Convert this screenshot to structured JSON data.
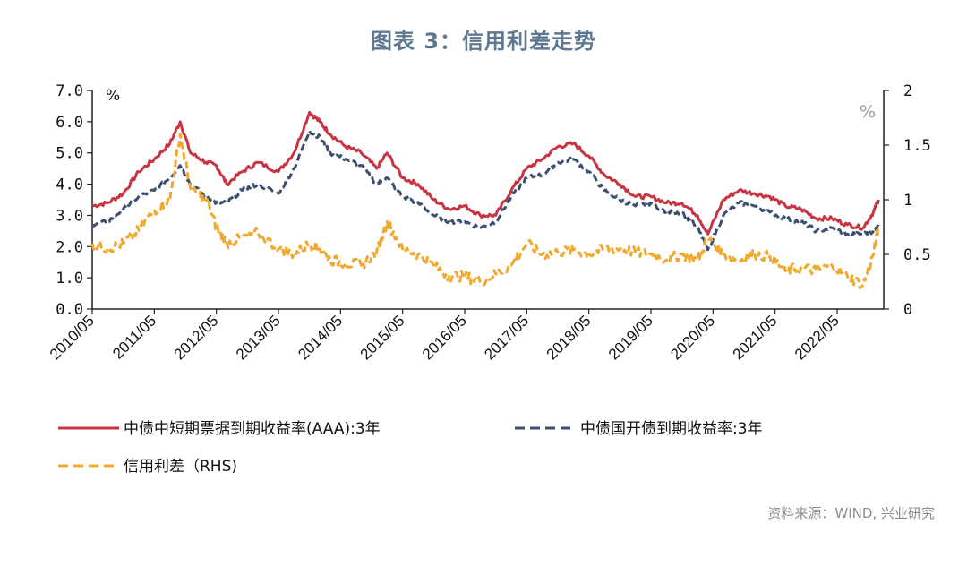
{
  "title": "图表 3：信用利差走势",
  "source": "资料来源：WIND, 兴业研究",
  "colors": {
    "aaa": "#c83442",
    "cdb": "#3c4f70",
    "spread": "#f0a830",
    "axis": "#222222"
  },
  "chart_data": {
    "type": "line",
    "ylabel_left": "%",
    "ylabel_right": "%",
    "ylim_left": [
      0,
      7
    ],
    "ylim_right": [
      0,
      2
    ],
    "yticks_left": [
      "0.0",
      "1.0",
      "2.0",
      "3.0",
      "4.0",
      "5.0",
      "6.0",
      "7.0"
    ],
    "yticks_right": [
      "0",
      "0.5",
      "1",
      "1.5",
      "2"
    ],
    "xticks": [
      "2010/05",
      "2011/05",
      "2012/05",
      "2013/05",
      "2014/05",
      "2015/05",
      "2016/05",
      "2017/05",
      "2018/05",
      "2019/05",
      "2020/05",
      "2021/05",
      "2022/05"
    ],
    "x_range": [
      "2010/05",
      "2023/02"
    ],
    "series": [
      {
        "name": "中债中短期票据到期收益率(AAA):3年",
        "axis": "left",
        "style": "solid",
        "points": [
          [
            "2010/05",
            3.3
          ],
          [
            "2010/08",
            3.4
          ],
          [
            "2010/11",
            3.7
          ],
          [
            "2011/02",
            4.4
          ],
          [
            "2011/05",
            4.8
          ],
          [
            "2011/08",
            5.3
          ],
          [
            "2011/10",
            6.0
          ],
          [
            "2011/12",
            5.0
          ],
          [
            "2012/03",
            4.7
          ],
          [
            "2012/05",
            4.6
          ],
          [
            "2012/07",
            4.0
          ],
          [
            "2012/10",
            4.4
          ],
          [
            "2013/01",
            4.7
          ],
          [
            "2013/05",
            4.4
          ],
          [
            "2013/08",
            5.0
          ],
          [
            "2013/11",
            6.3
          ],
          [
            "2014/01",
            6.0
          ],
          [
            "2014/03",
            5.6
          ],
          [
            "2014/06",
            5.2
          ],
          [
            "2014/09",
            5.0
          ],
          [
            "2014/12",
            4.5
          ],
          [
            "2015/02",
            5.0
          ],
          [
            "2015/05",
            4.2
          ],
          [
            "2015/08",
            4.0
          ],
          [
            "2015/11",
            3.5
          ],
          [
            "2016/02",
            3.2
          ],
          [
            "2016/05",
            3.3
          ],
          [
            "2016/08",
            3.0
          ],
          [
            "2016/11",
            3.0
          ],
          [
            "2017/02",
            3.8
          ],
          [
            "2017/05",
            4.5
          ],
          [
            "2017/08",
            4.8
          ],
          [
            "2017/11",
            5.2
          ],
          [
            "2018/02",
            5.3
          ],
          [
            "2018/05",
            4.9
          ],
          [
            "2018/08",
            4.3
          ],
          [
            "2018/11",
            4.0
          ],
          [
            "2019/02",
            3.6
          ],
          [
            "2019/05",
            3.6
          ],
          [
            "2019/08",
            3.4
          ],
          [
            "2019/11",
            3.4
          ],
          [
            "2020/02",
            3.0
          ],
          [
            "2020/04",
            2.4
          ],
          [
            "2020/07",
            3.5
          ],
          [
            "2020/10",
            3.8
          ],
          [
            "2021/01",
            3.7
          ],
          [
            "2021/04",
            3.6
          ],
          [
            "2021/07",
            3.3
          ],
          [
            "2021/10",
            3.2
          ],
          [
            "2022/01",
            2.9
          ],
          [
            "2022/04",
            2.9
          ],
          [
            "2022/07",
            2.7
          ],
          [
            "2022/10",
            2.6
          ],
          [
            "2022/12",
            3.1
          ],
          [
            "2023/01",
            3.5
          ]
        ]
      },
      {
        "name": "中债国开债到期收益率:3年",
        "axis": "left",
        "style": "dashed",
        "points": [
          [
            "2010/05",
            2.7
          ],
          [
            "2010/08",
            2.8
          ],
          [
            "2010/11",
            3.2
          ],
          [
            "2011/02",
            3.6
          ],
          [
            "2011/05",
            3.8
          ],
          [
            "2011/08",
            4.2
          ],
          [
            "2011/10",
            4.6
          ],
          [
            "2011/12",
            4.0
          ],
          [
            "2012/03",
            3.6
          ],
          [
            "2012/05",
            3.4
          ],
          [
            "2012/07",
            3.4
          ],
          [
            "2012/10",
            3.8
          ],
          [
            "2013/01",
            4.0
          ],
          [
            "2013/05",
            3.7
          ],
          [
            "2013/08",
            4.5
          ],
          [
            "2013/11",
            5.7
          ],
          [
            "2014/01",
            5.5
          ],
          [
            "2014/03",
            5.0
          ],
          [
            "2014/06",
            4.8
          ],
          [
            "2014/09",
            4.6
          ],
          [
            "2014/12",
            4.0
          ],
          [
            "2015/02",
            4.2
          ],
          [
            "2015/05",
            3.6
          ],
          [
            "2015/08",
            3.4
          ],
          [
            "2015/11",
            3.0
          ],
          [
            "2016/02",
            2.8
          ],
          [
            "2016/05",
            2.8
          ],
          [
            "2016/08",
            2.6
          ],
          [
            "2016/11",
            2.8
          ],
          [
            "2017/02",
            3.6
          ],
          [
            "2017/05",
            4.2
          ],
          [
            "2017/08",
            4.3
          ],
          [
            "2017/11",
            4.7
          ],
          [
            "2018/02",
            4.8
          ],
          [
            "2018/05",
            4.4
          ],
          [
            "2018/08",
            3.8
          ],
          [
            "2018/11",
            3.5
          ],
          [
            "2019/02",
            3.3
          ],
          [
            "2019/05",
            3.4
          ],
          [
            "2019/08",
            3.1
          ],
          [
            "2019/11",
            3.1
          ],
          [
            "2020/02",
            2.6
          ],
          [
            "2020/04",
            1.9
          ],
          [
            "2020/07",
            3.0
          ],
          [
            "2020/10",
            3.4
          ],
          [
            "2021/01",
            3.3
          ],
          [
            "2021/04",
            3.1
          ],
          [
            "2021/07",
            2.9
          ],
          [
            "2021/10",
            2.8
          ],
          [
            "2022/01",
            2.5
          ],
          [
            "2022/04",
            2.6
          ],
          [
            "2022/07",
            2.4
          ],
          [
            "2022/10",
            2.4
          ],
          [
            "2022/12",
            2.5
          ],
          [
            "2023/01",
            2.7
          ]
        ]
      },
      {
        "name": "信用利差（RHS)",
        "axis": "right",
        "style": "dashed",
        "points": [
          [
            "2010/05",
            0.6
          ],
          [
            "2010/08",
            0.55
          ],
          [
            "2010/11",
            0.6
          ],
          [
            "2011/02",
            0.72
          ],
          [
            "2011/05",
            0.9
          ],
          [
            "2011/08",
            1.0
          ],
          [
            "2011/10",
            1.6
          ],
          [
            "2011/12",
            1.1
          ],
          [
            "2012/03",
            1.0
          ],
          [
            "2012/05",
            0.75
          ],
          [
            "2012/07",
            0.6
          ],
          [
            "2012/10",
            0.65
          ],
          [
            "2013/01",
            0.7
          ],
          [
            "2013/05",
            0.55
          ],
          [
            "2013/08",
            0.5
          ],
          [
            "2013/11",
            0.6
          ],
          [
            "2014/01",
            0.55
          ],
          [
            "2014/03",
            0.45
          ],
          [
            "2014/06",
            0.42
          ],
          [
            "2014/09",
            0.4
          ],
          [
            "2014/12",
            0.52
          ],
          [
            "2015/02",
            0.8
          ],
          [
            "2015/05",
            0.55
          ],
          [
            "2015/08",
            0.5
          ],
          [
            "2015/11",
            0.4
          ],
          [
            "2016/02",
            0.3
          ],
          [
            "2016/05",
            0.3
          ],
          [
            "2016/08",
            0.25
          ],
          [
            "2016/11",
            0.32
          ],
          [
            "2017/02",
            0.4
          ],
          [
            "2017/05",
            0.6
          ],
          [
            "2017/08",
            0.5
          ],
          [
            "2017/11",
            0.52
          ],
          [
            "2018/02",
            0.54
          ],
          [
            "2018/05",
            0.5
          ],
          [
            "2018/08",
            0.55
          ],
          [
            "2018/11",
            0.55
          ],
          [
            "2019/02",
            0.52
          ],
          [
            "2019/05",
            0.5
          ],
          [
            "2019/08",
            0.45
          ],
          [
            "2019/11",
            0.5
          ],
          [
            "2020/02",
            0.45
          ],
          [
            "2020/04",
            0.65
          ],
          [
            "2020/07",
            0.5
          ],
          [
            "2020/10",
            0.45
          ],
          [
            "2021/01",
            0.5
          ],
          [
            "2021/04",
            0.48
          ],
          [
            "2021/07",
            0.35
          ],
          [
            "2021/10",
            0.38
          ],
          [
            "2022/01",
            0.35
          ],
          [
            "2022/04",
            0.4
          ],
          [
            "2022/07",
            0.3
          ],
          [
            "2022/10",
            0.22
          ],
          [
            "2022/12",
            0.5
          ],
          [
            "2023/01",
            0.75
          ]
        ]
      }
    ]
  }
}
